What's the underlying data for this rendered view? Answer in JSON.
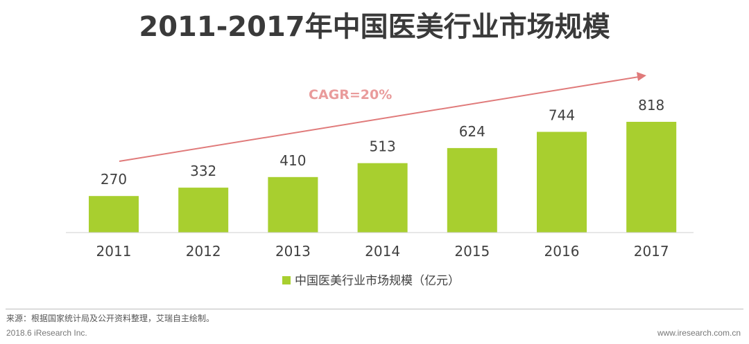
{
  "chart_data": {
    "type": "bar",
    "title": "2011-2017年中国医美行业市场规模",
    "categories": [
      "2011",
      "2012",
      "2013",
      "2014",
      "2015",
      "2016",
      "2017"
    ],
    "series": [
      {
        "name": "中国医美行业市场规模（亿元）",
        "values": [
          270,
          332,
          410,
          513,
          624,
          744,
          818
        ]
      }
    ],
    "data_labels": [
      "270",
      "332",
      "410",
      "513",
      "624",
      "744",
      "818"
    ],
    "annotation": "CAGR=20%",
    "legend_position": "bottom-center",
    "grid": false,
    "y_axis_visible": false,
    "ylim": [
      0,
      818
    ]
  },
  "colors": {
    "bar": "#a8cf2f",
    "title": "#3a3a3a",
    "annotation": "#e99b9b",
    "arrow": "#e07a7a",
    "axis": "#cfcfcf",
    "label": "#404040"
  },
  "footer": {
    "source": "来源：根据国家统计局及公开资料整理，艾瑞自主绘制。",
    "copyright": "2018.6 iResearch Inc.",
    "site": "www.iresearch.com.cn"
  }
}
